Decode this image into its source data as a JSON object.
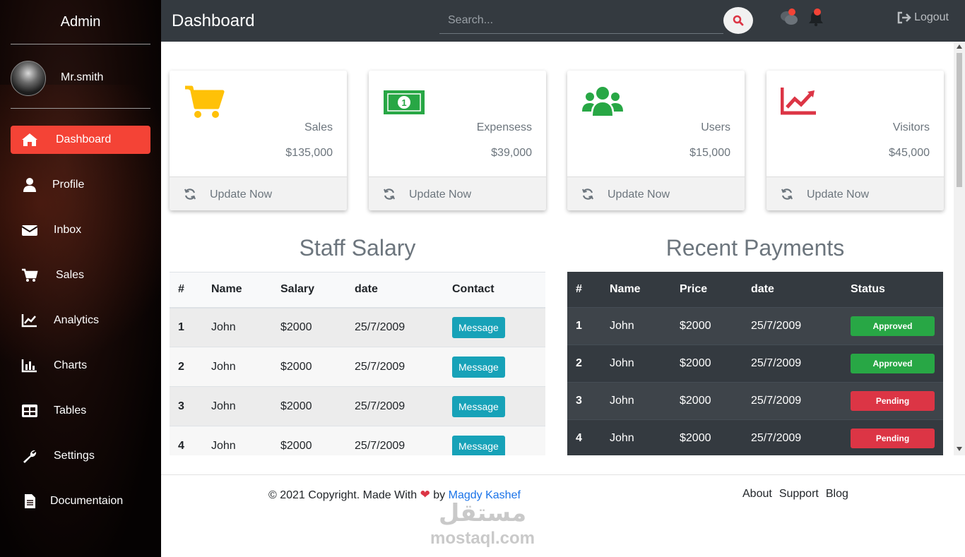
{
  "sidebar": {
    "title": "Admin",
    "username": "Mr.smith",
    "items": [
      {
        "label": "Dashboard",
        "icon": "home-icon",
        "active": true
      },
      {
        "label": "Profile",
        "icon": "user-icon"
      },
      {
        "label": "Inbox",
        "icon": "envelope-icon"
      },
      {
        "label": "Sales",
        "icon": "cart-icon"
      },
      {
        "label": "Analytics",
        "icon": "line-chart-icon"
      },
      {
        "label": "Charts",
        "icon": "bar-chart-icon"
      },
      {
        "label": "Tables",
        "icon": "table-icon"
      },
      {
        "label": "Settings",
        "icon": "wrench-icon"
      },
      {
        "label": "Documentaion",
        "icon": "document-icon"
      }
    ]
  },
  "topbar": {
    "title": "Dashboard",
    "search_placeholder": "Search...",
    "logout_label": "Logout"
  },
  "cards": [
    {
      "label": "Sales",
      "value": "$135,000",
      "update": "Update Now",
      "icon": "cart-icon",
      "color": "#ffc107"
    },
    {
      "label": "Expensess",
      "value": "$39,000",
      "update": "Update Now",
      "icon": "money-icon",
      "color": "#28a745"
    },
    {
      "label": "Users",
      "value": "$15,000",
      "update": "Update Now",
      "icon": "users-icon",
      "color": "#28a745"
    },
    {
      "label": "Visitors",
      "value": "$45,000",
      "update": "Update Now",
      "icon": "chart-line-icon",
      "color": "#dc3545"
    }
  ],
  "staff_salary": {
    "title": "Staff Salary",
    "headers": [
      "#",
      "Name",
      "Salary",
      "date",
      "Contact"
    ],
    "rows": [
      {
        "num": "1",
        "name": "John",
        "salary": "$2000",
        "date": "25/7/2009",
        "action": "Message"
      },
      {
        "num": "2",
        "name": "John",
        "salary": "$2000",
        "date": "25/7/2009",
        "action": "Message"
      },
      {
        "num": "3",
        "name": "John",
        "salary": "$2000",
        "date": "25/7/2009",
        "action": "Message"
      },
      {
        "num": "4",
        "name": "John",
        "salary": "$2000",
        "date": "25/7/2009",
        "action": "Message"
      }
    ]
  },
  "recent_payments": {
    "title": "Recent Payments",
    "headers": [
      "#",
      "Name",
      "Price",
      "date",
      "Status"
    ],
    "rows": [
      {
        "num": "1",
        "name": "John",
        "price": "$2000",
        "date": "25/7/2009",
        "status": "Approved",
        "status_color": "#28a745"
      },
      {
        "num": "2",
        "name": "John",
        "price": "$2000",
        "date": "25/7/2009",
        "status": "Approved",
        "status_color": "#28a745"
      },
      {
        "num": "3",
        "name": "John",
        "price": "$2000",
        "date": "25/7/2009",
        "status": "Pending",
        "status_color": "#dc3545"
      },
      {
        "num": "4",
        "name": "John",
        "price": "$2000",
        "date": "25/7/2009",
        "status": "Pending",
        "status_color": "#dc3545"
      }
    ]
  },
  "footer": {
    "copyright_prefix": "© 2021 Copyright. Made With",
    "by": "by",
    "author": "Magdy Kashef",
    "links": [
      "About",
      "Support",
      "Blog"
    ]
  },
  "watermark": {
    "text_latin": "mostaql.com",
    "text_arabic": "مستقل"
  },
  "colors": {
    "accent": "#f44336",
    "topbar_bg": "#343a40",
    "info": "#17a2b8"
  }
}
